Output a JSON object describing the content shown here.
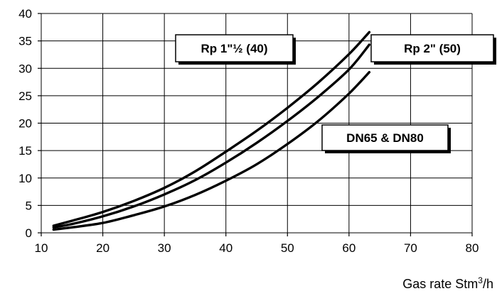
{
  "chart_data": {
    "type": "line",
    "title": "",
    "xlabel": {
      "prefix": "Gas rate Stm",
      "sup": "3",
      "suffix": "/h"
    },
    "ylabel": "",
    "xlim": [
      10,
      80
    ],
    "ylim": [
      0,
      40
    ],
    "xticks": [
      10,
      20,
      30,
      40,
      50,
      60,
      70,
      80
    ],
    "yticks": [
      0,
      5,
      10,
      15,
      20,
      25,
      30,
      35,
      40
    ],
    "grid": true,
    "legend": "none",
    "series": [
      {
        "name": "Rp 1\"½ (40)",
        "x": [
          12,
          15,
          20,
          25,
          30,
          35,
          40,
          45,
          50,
          55,
          60,
          63.3
        ],
        "y": [
          1.3,
          2.2,
          3.8,
          5.8,
          8.2,
          11.2,
          14.8,
          18.6,
          22.8,
          27.4,
          32.6,
          36.6
        ]
      },
      {
        "name": "Rp 2\" (50)",
        "x": [
          12,
          15,
          20,
          25,
          30,
          35,
          40,
          45,
          50,
          55,
          60,
          63.3
        ],
        "y": [
          1.0,
          1.6,
          3.0,
          4.8,
          7.0,
          9.6,
          12.8,
          16.4,
          20.4,
          24.8,
          29.8,
          34.3
        ]
      },
      {
        "name": "DN65 & DN80",
        "x": [
          12,
          15,
          20,
          25,
          30,
          35,
          40,
          45,
          50,
          55,
          60,
          63.3
        ],
        "y": [
          0.6,
          1.0,
          1.8,
          3.2,
          4.8,
          6.9,
          9.5,
          12.5,
          16.2,
          20.4,
          25.4,
          29.3
        ]
      }
    ],
    "annotations": [
      {
        "text": "Rp 1\"½ (40)",
        "series": 0
      },
      {
        "text": "Rp 2\" (50)",
        "series": 1
      },
      {
        "text": "DN65 & DN80",
        "series": 2
      }
    ]
  }
}
